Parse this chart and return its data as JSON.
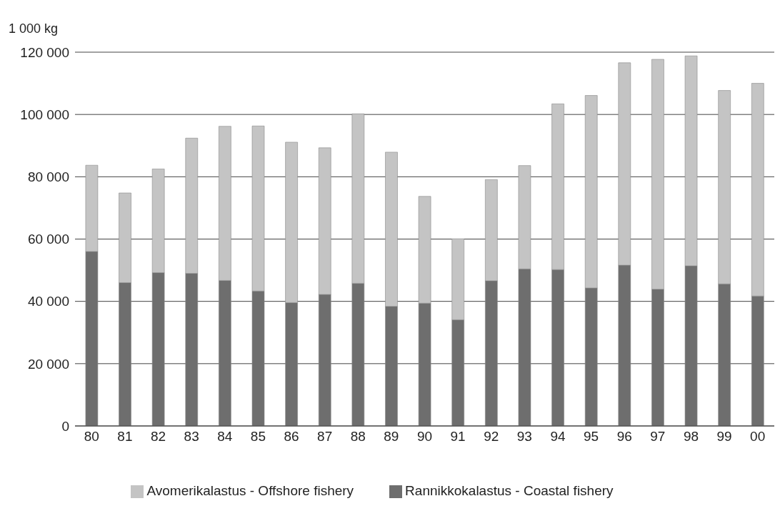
{
  "chart_data": {
    "type": "bar",
    "ylabel": "1 000 kg",
    "categories": [
      "80",
      "81",
      "82",
      "83",
      "84",
      "85",
      "86",
      "87",
      "88",
      "89",
      "90",
      "91",
      "92",
      "93",
      "94",
      "95",
      "96",
      "97",
      "98",
      "99",
      "00"
    ],
    "series": [
      {
        "name": "Rannikkokalastus - Coastal fishery",
        "color": "#6e6e6e",
        "values": [
          56000,
          46000,
          49200,
          49000,
          46700,
          43300,
          39600,
          42200,
          45800,
          38400,
          39400,
          34100,
          46600,
          50400,
          50200,
          44300,
          51600,
          43900,
          51400,
          45600,
          41700
        ]
      },
      {
        "name": "Avomerikalastus - Offshore fishery",
        "color": "#c4c4c4",
        "values": [
          27700,
          28800,
          33300,
          43400,
          49500,
          53000,
          51500,
          47100,
          54400,
          49500,
          34300,
          26000,
          32500,
          33200,
          53200,
          61800,
          65000,
          73800,
          67400,
          62100,
          68300
        ]
      }
    ],
    "stacked": true,
    "ylim": [
      0,
      120000
    ],
    "yticks": [
      {
        "value": 0,
        "label": "0"
      },
      {
        "value": 20000,
        "label": "20 000"
      },
      {
        "value": 40000,
        "label": "40 000"
      },
      {
        "value": 60000,
        "label": "60 000"
      },
      {
        "value": 80000,
        "label": "80 000"
      },
      {
        "value": 100000,
        "label": "100 000"
      },
      {
        "value": 120000,
        "label": "120 000"
      }
    ],
    "grid": "y",
    "legend": "bottom"
  }
}
